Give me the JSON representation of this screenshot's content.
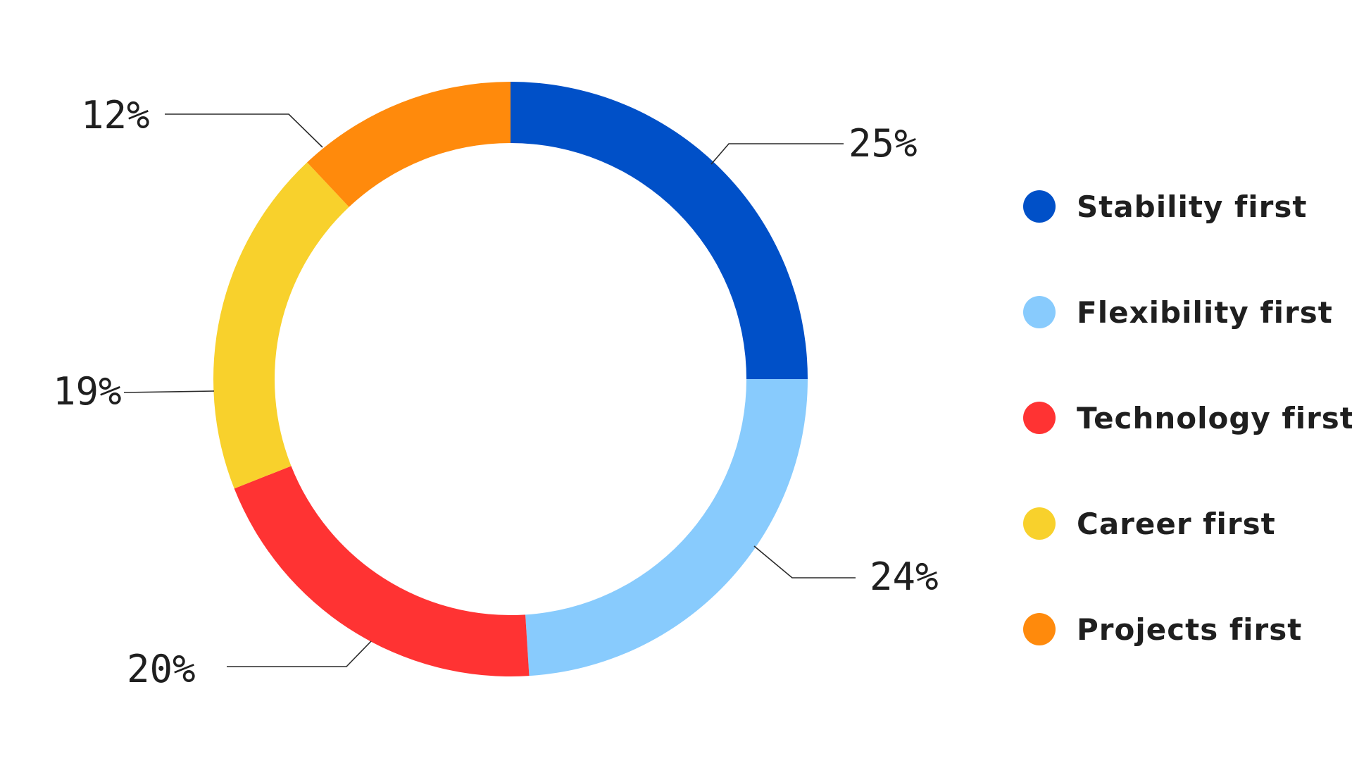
{
  "chart_data": {
    "type": "pie",
    "variant": "donut",
    "title": "",
    "legend_placement": "right",
    "series": [
      {
        "name": "Stability first",
        "value": 25,
        "label": "25%",
        "color": "#0050c8"
      },
      {
        "name": "Flexibility first",
        "value": 24,
        "label": "24%",
        "color": "#88cbfd"
      },
      {
        "name": "Technology first",
        "value": 20,
        "label": "20%",
        "color": "#ff3333"
      },
      {
        "name": "Career first",
        "value": 19,
        "label": "19%",
        "color": "#f8d12c"
      },
      {
        "name": "Projects first",
        "value": 12,
        "label": "12%",
        "color": "#ff8a0c"
      }
    ]
  }
}
